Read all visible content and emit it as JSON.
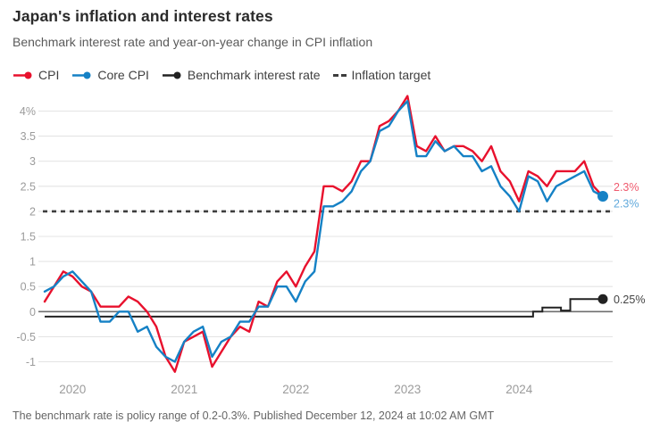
{
  "header": {
    "title": "Japan's inflation and interest rates",
    "subtitle": "Benchmark interest rate and year-on-year change in CPI inflation"
  },
  "legend": [
    {
      "label": "CPI",
      "marker": "line-dot",
      "color": "#e8112d"
    },
    {
      "label": "Core CPI",
      "marker": "line-dot",
      "color": "#1581c5"
    },
    {
      "label": "Benchmark interest rate",
      "marker": "line-dot",
      "color": "#222222"
    },
    {
      "label": "Inflation target",
      "marker": "dashes",
      "color": "#3d3d3d"
    }
  ],
  "chart_data": {
    "type": "line",
    "title": "Japan's inflation and interest rates",
    "frequency": "monthly",
    "x_start": "2019-10",
    "x_end": "2024-10",
    "x_tick_labels": [
      "2020",
      "2021",
      "2022",
      "2023",
      "2024"
    ],
    "x_tick_month_index": [
      3,
      15,
      27,
      39,
      51
    ],
    "y_ticks": [
      4,
      3.5,
      3,
      2.5,
      2,
      1.5,
      1,
      0.5,
      0,
      -0.5,
      -1
    ],
    "y_tick_labels": [
      "4%",
      "3.5",
      "3",
      "2.5",
      "2",
      "1.5",
      "1",
      "0.5",
      "0",
      "-0.5",
      "-1"
    ],
    "ylim": [
      -1.35,
      4.45
    ],
    "grid": true,
    "inflation_target": {
      "value": 2,
      "color": "#3d3d3d"
    },
    "series": [
      {
        "name": "CPI",
        "color": "#e8112d",
        "style": "line",
        "end_label": "2.3%",
        "end_label_color": "#ef5a6e",
        "end_dot": false,
        "values": [
          0.2,
          0.5,
          0.8,
          0.7,
          0.5,
          0.4,
          0.1,
          0.1,
          0.1,
          0.3,
          0.2,
          0.0,
          -0.3,
          -0.9,
          -1.2,
          -0.6,
          -0.5,
          -0.4,
          -1.1,
          -0.8,
          -0.5,
          -0.3,
          -0.4,
          0.2,
          0.1,
          0.6,
          0.8,
          0.5,
          0.9,
          1.2,
          2.5,
          2.5,
          2.4,
          2.6,
          3.0,
          3.0,
          3.7,
          3.8,
          4.0,
          4.3,
          3.3,
          3.2,
          3.5,
          3.2,
          3.3,
          3.3,
          3.2,
          3.0,
          3.3,
          2.8,
          2.6,
          2.2,
          2.8,
          2.7,
          2.5,
          2.8,
          2.8,
          2.8,
          3.0,
          2.5,
          2.3
        ]
      },
      {
        "name": "Core CPI",
        "color": "#1581c5",
        "style": "line",
        "end_label": "2.3%",
        "end_label_color": "#62aadc",
        "end_dot": true,
        "values": [
          0.4,
          0.5,
          0.7,
          0.8,
          0.6,
          0.4,
          -0.2,
          -0.2,
          0.0,
          0.0,
          -0.4,
          -0.3,
          -0.7,
          -0.9,
          -1.0,
          -0.6,
          -0.4,
          -0.3,
          -0.9,
          -0.6,
          -0.5,
          -0.2,
          -0.2,
          0.1,
          0.1,
          0.5,
          0.5,
          0.2,
          0.6,
          0.8,
          2.1,
          2.1,
          2.2,
          2.4,
          2.8,
          3.0,
          3.6,
          3.7,
          4.0,
          4.2,
          3.1,
          3.1,
          3.4,
          3.2,
          3.3,
          3.1,
          3.1,
          2.8,
          2.9,
          2.5,
          2.3,
          2.0,
          2.7,
          2.6,
          2.2,
          2.5,
          2.6,
          2.7,
          2.8,
          2.4,
          2.3
        ]
      },
      {
        "name": "Benchmark interest rate",
        "color": "#222222",
        "style": "step",
        "end_label": "0.25%",
        "end_label_color": "#444444",
        "end_dot": true,
        "values": [
          -0.1,
          -0.1,
          -0.1,
          -0.1,
          -0.1,
          -0.1,
          -0.1,
          -0.1,
          -0.1,
          -0.1,
          -0.1,
          -0.1,
          -0.1,
          -0.1,
          -0.1,
          -0.1,
          -0.1,
          -0.1,
          -0.1,
          -0.1,
          -0.1,
          -0.1,
          -0.1,
          -0.1,
          -0.1,
          -0.1,
          -0.1,
          -0.1,
          -0.1,
          -0.1,
          -0.1,
          -0.1,
          -0.1,
          -0.1,
          -0.1,
          -0.1,
          -0.1,
          -0.1,
          -0.1,
          -0.1,
          -0.1,
          -0.1,
          -0.1,
          -0.1,
          -0.1,
          -0.1,
          -0.1,
          -0.1,
          -0.1,
          -0.1,
          -0.1,
          -0.1,
          -0.1,
          0.0,
          0.08,
          0.08,
          0.02,
          0.25,
          0.25,
          0.25,
          0.25
        ]
      }
    ]
  },
  "footer": {
    "note": "The benchmark rate is policy range of 0.2-0.3%. Published December 12, 2024 at 10:02 AM GMT"
  }
}
